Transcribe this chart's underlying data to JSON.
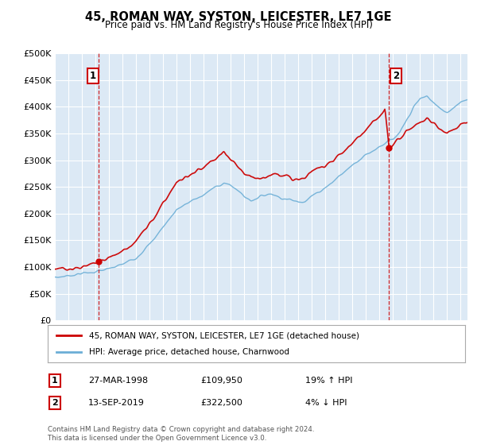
{
  "title": "45, ROMAN WAY, SYSTON, LEICESTER, LE7 1GE",
  "subtitle": "Price paid vs. HM Land Registry's House Price Index (HPI)",
  "ylim": [
    0,
    500000
  ],
  "yticks": [
    0,
    50000,
    100000,
    150000,
    200000,
    250000,
    300000,
    350000,
    400000,
    450000,
    500000
  ],
  "ytick_labels": [
    "£0",
    "£50K",
    "£100K",
    "£150K",
    "£200K",
    "£250K",
    "£300K",
    "£350K",
    "£400K",
    "£450K",
    "£500K"
  ],
  "xlim": [
    1995,
    2025.5
  ],
  "xticks": [
    1995,
    1996,
    1997,
    1998,
    1999,
    2000,
    2001,
    2002,
    2003,
    2004,
    2005,
    2006,
    2007,
    2008,
    2009,
    2010,
    2011,
    2012,
    2013,
    2014,
    2015,
    2016,
    2017,
    2018,
    2019,
    2020,
    2021,
    2022,
    2023,
    2024,
    2025
  ],
  "background_color": "#dce9f5",
  "grid_color": "#ffffff",
  "sale1": {
    "date_x": 1998.23,
    "price": 109950,
    "label": "1",
    "date_str": "27-MAR-1998",
    "pct_str": "19% ↑ HPI",
    "price_str": "£109,950"
  },
  "sale2": {
    "date_x": 2019.71,
    "price": 322500,
    "label": "2",
    "date_str": "13-SEP-2019",
    "pct_str": "4% ↓ HPI",
    "price_str": "£322,500"
  },
  "legend_entry1": "45, ROMAN WAY, SYSTON, LEICESTER, LE7 1GE (detached house)",
  "legend_entry2": "HPI: Average price, detached house, Charnwood",
  "footnote": "Contains HM Land Registry data © Crown copyright and database right 2024.\nThis data is licensed under the Open Government Licence v3.0.",
  "hpi_color": "#6baed6",
  "price_color": "#cc0000",
  "vline_color": "#cc0000",
  "box_color": "#cc0000",
  "marker_color": "#cc0000"
}
